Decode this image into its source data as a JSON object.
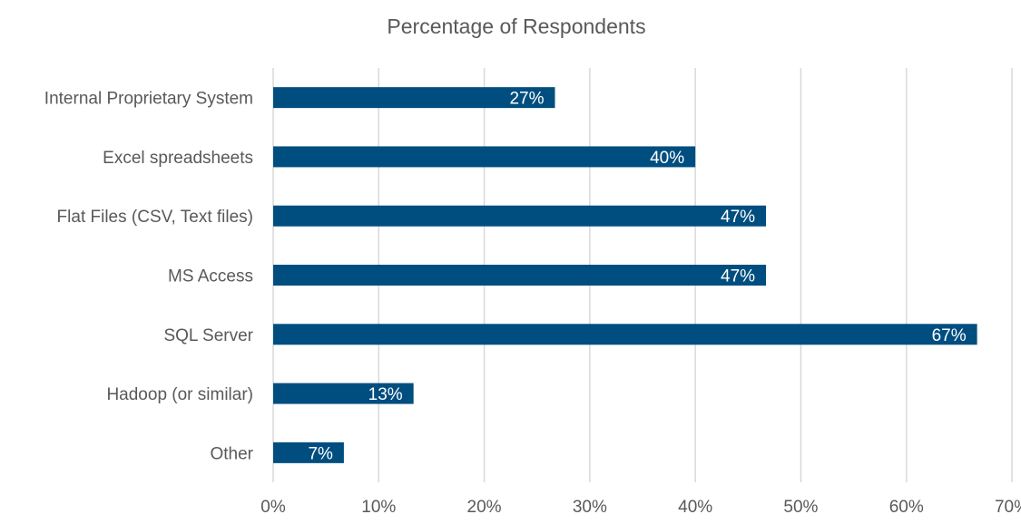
{
  "chart_data": {
    "type": "bar",
    "orientation": "horizontal",
    "title": "Percentage of Respondents",
    "xlabel": "",
    "ylabel": "",
    "categories": [
      "Internal Proprietary System",
      "Excel spreadsheets",
      "Flat Files (CSV, Text files)",
      "MS Access",
      "SQL Server",
      "Hadoop (or similar)",
      "Other"
    ],
    "values": [
      26.7,
      40,
      46.7,
      46.7,
      66.7,
      13.3,
      6.7
    ],
    "data_labels": [
      "27%",
      "40%",
      "47%",
      "47%",
      "67%",
      "13%",
      "7%"
    ],
    "xlim": [
      0,
      70
    ],
    "x_ticks": [
      0,
      10,
      20,
      30,
      40,
      50,
      60,
      70
    ],
    "x_tick_labels": [
      "0%",
      "10%",
      "20%",
      "30%",
      "40%",
      "50%",
      "60%",
      "70%"
    ],
    "grid": "vertical",
    "legend": "none",
    "bar_color": "#004e7f",
    "grid_color": "#d9d9d9",
    "text_color": "#595959"
  }
}
